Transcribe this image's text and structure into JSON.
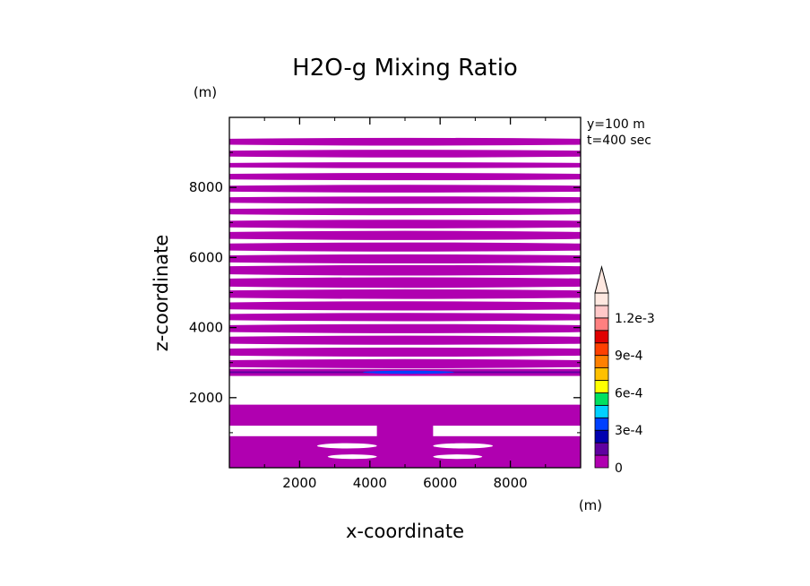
{
  "chart_data": {
    "type": "heatmap",
    "title": "H2O-g Mixing Ratio",
    "xlabel": "x-coordinate",
    "ylabel": "z-coordinate",
    "x_unit": "(m)",
    "y_unit": "(m)",
    "annotation_lines": [
      "y=100 m",
      "t=400 sec"
    ],
    "xlim": [
      0,
      10000
    ],
    "ylim": [
      0,
      10000
    ],
    "xticks": [
      2000,
      4000,
      6000,
      8000
    ],
    "xtick_labels": [
      "2000",
      "4000",
      "6000",
      "8000"
    ],
    "yticks": [
      2000,
      4000,
      6000,
      8000
    ],
    "ytick_labels": [
      "2000",
      "4000",
      "6000",
      "8000"
    ],
    "grid": false,
    "colorbar": {
      "levels": [
        0,
        0.0001,
        0.0002,
        0.0003,
        0.0004,
        0.0005,
        0.0006,
        0.0007,
        0.0008,
        0.0009,
        0.001,
        0.0011,
        0.0012,
        0.0013
      ],
      "colors": [
        "#b000b0",
        "#6000a0",
        "#0000b0",
        "#0040ff",
        "#00d0ff",
        "#00e060",
        "#ffff00",
        "#ffc000",
        "#ff8000",
        "#ff4000",
        "#e00000",
        "#ff8080",
        "#ffc8c8",
        "#ffe8e0"
      ],
      "tick_values": [
        0,
        0.0003,
        0.0006,
        0.0009,
        0.0012
      ],
      "tick_labels": [
        "0",
        "3e-4",
        "6e-4",
        "9e-4",
        "1.2e-3"
      ],
      "extend": "max"
    },
    "fill_color": "#b000b0",
    "upper_bands": [
      [
        9220,
        9390
      ],
      [
        8880,
        9050
      ],
      [
        8570,
        8700
      ],
      [
        8230,
        8390
      ],
      [
        7880,
        8050
      ],
      [
        7560,
        7720
      ],
      [
        7230,
        7390
      ],
      [
        6860,
        7050
      ],
      [
        6530,
        6730
      ],
      [
        6200,
        6400
      ],
      [
        5860,
        6060
      ],
      [
        5520,
        5750
      ],
      [
        5170,
        5400
      ],
      [
        4850,
        5060
      ],
      [
        4520,
        4720
      ],
      [
        4210,
        4390
      ],
      [
        3870,
        4070
      ],
      [
        3540,
        3740
      ],
      [
        3200,
        3400
      ],
      [
        2870,
        3070
      ]
    ],
    "edge_band": [
      2620,
      2820
    ],
    "edge_band_core": {
      "x": [
        3800,
        6400
      ],
      "z": [
        2680,
        2770
      ],
      "color": "#0040ff"
    },
    "lower_layers": [
      {
        "x": [
          0,
          10000
        ],
        "z": [
          1200,
          1800
        ]
      },
      {
        "x": [
          0,
          10000
        ],
        "z": [
          0,
          900
        ]
      },
      {
        "x": [
          4200,
          5800
        ],
        "z": [
          0,
          1600
        ]
      }
    ],
    "lower_gaps": [
      {
        "x": [
          2500,
          4200
        ],
        "z": [
          550,
          700
        ]
      },
      {
        "x": [
          5800,
          7500
        ],
        "z": [
          550,
          700
        ]
      },
      {
        "x": [
          2800,
          4200
        ],
        "z": [
          250,
          380
        ]
      },
      {
        "x": [
          5800,
          7200
        ],
        "z": [
          250,
          380
        ]
      }
    ]
  }
}
